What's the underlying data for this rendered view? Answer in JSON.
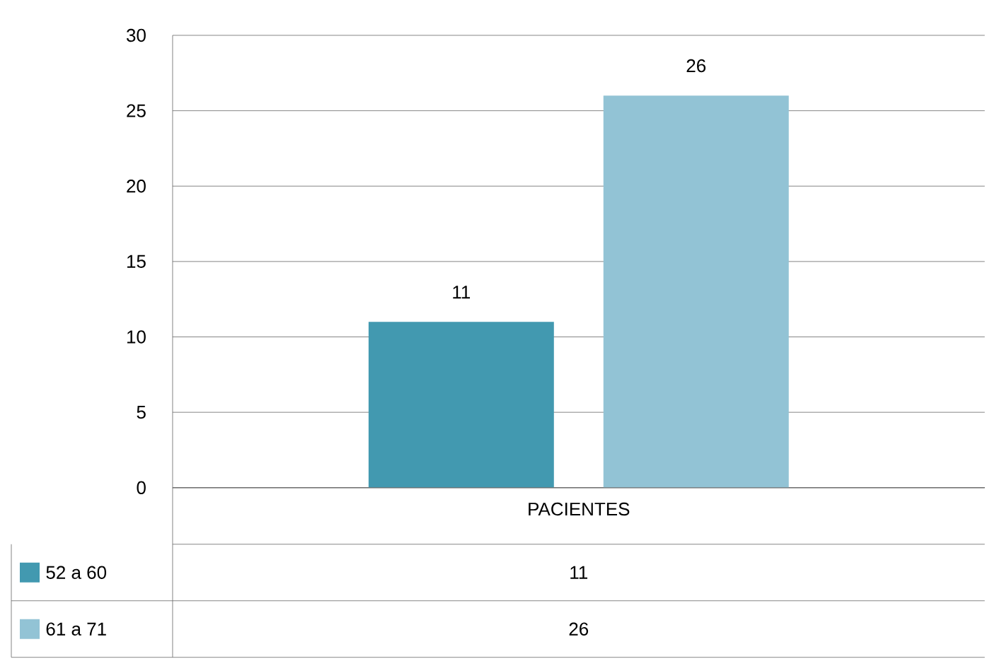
{
  "chart_data": {
    "type": "bar",
    "categories": [
      "PACIENTES"
    ],
    "series": [
      {
        "name": "52 a 60",
        "color": "#4299b0",
        "values": [
          11
        ]
      },
      {
        "name": "61 a 71",
        "color": "#92c3d5",
        "values": [
          26
        ]
      }
    ],
    "annotations": [
      "11",
      "26"
    ],
    "ylim": [
      0,
      30
    ],
    "yticks": [
      0,
      5,
      10,
      15,
      20,
      25,
      30
    ],
    "grid": "y",
    "legend": "bottom",
    "data_labels": true
  }
}
